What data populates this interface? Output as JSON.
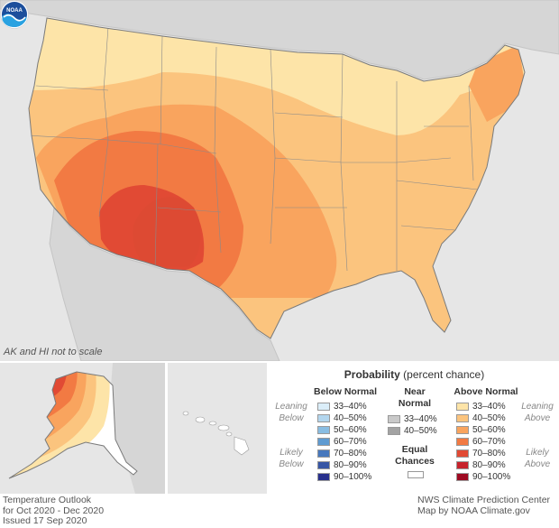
{
  "map": {
    "scale_note": "AK and HI not to scale",
    "logo_text": "NOAA",
    "outlook": "temperature probability, above normal favored across CONUS and southern Alaska"
  },
  "legend": {
    "title_bold": "Probability",
    "title_rest": " (percent chance)",
    "below": {
      "header": "Below Normal",
      "side_top": [
        "Leaning",
        "Below"
      ],
      "side_bottom": [
        "Likely",
        "Below"
      ],
      "items": [
        {
          "label": "33–40%",
          "color": "#dbeef9"
        },
        {
          "label": "40–50%",
          "color": "#b3d6ee"
        },
        {
          "label": "50–60%",
          "color": "#89bde2"
        },
        {
          "label": "60–70%",
          "color": "#5f9bd1"
        },
        {
          "label": "70–80%",
          "color": "#4778bd"
        },
        {
          "label": "80–90%",
          "color": "#3756a5"
        },
        {
          "label": "90–100%",
          "color": "#28308c"
        }
      ]
    },
    "near": {
      "header_line1": "Near",
      "header_line2": "Normal",
      "items": [
        {
          "label": "33–40%",
          "color": "#c9c9c9"
        },
        {
          "label": "40–50%",
          "color": "#a3a3a3"
        }
      ]
    },
    "equal": {
      "line1": "Equal",
      "line2": "Chances",
      "color": "#ffffff"
    },
    "above": {
      "header": "Above Normal",
      "side_top": [
        "Leaning",
        "Above"
      ],
      "side_bottom": [
        "Likely",
        "Above"
      ],
      "items": [
        {
          "label": "33–40%",
          "color": "#fde4a8"
        },
        {
          "label": "40–50%",
          "color": "#fbc47e"
        },
        {
          "label": "50–60%",
          "color": "#f9a45e"
        },
        {
          "label": "60–70%",
          "color": "#f27a43"
        },
        {
          "label": "70–80%",
          "color": "#e14a34"
        },
        {
          "label": "80–90%",
          "color": "#c7232c"
        },
        {
          "label": "90–100%",
          "color": "#9e0a22"
        }
      ]
    }
  },
  "footer": {
    "left": [
      "Temperature Outlook",
      "for Oct 2020 - Dec 2020",
      "Issued 17 Sep 2020"
    ],
    "right": [
      "NWS Climate Prediction Center",
      "Map by NOAA Climate.gov"
    ]
  },
  "colors": {
    "land_gray": "#d6d6d6",
    "background": "#e6e6e6",
    "water": "#e6e6e6",
    "border": "#999999"
  }
}
